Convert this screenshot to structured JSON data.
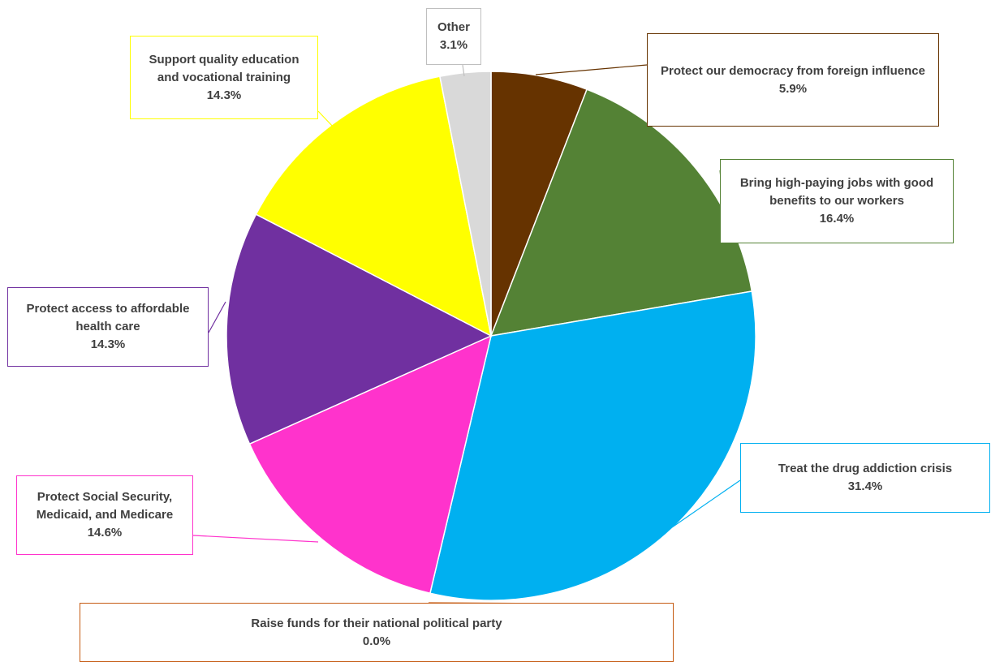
{
  "chart_data": {
    "type": "pie",
    "start_angle_deg": 0,
    "direction": "clockwise",
    "slices": [
      {
        "label": "Protect our democracy from foreign influence",
        "pct": "5.9%",
        "value": 5.9,
        "color": "#663300",
        "border": "#663300"
      },
      {
        "label": "Bring high-paying jobs with good benefits to our workers",
        "pct": "16.4%",
        "value": 16.4,
        "color": "#548235",
        "border": "#548235"
      },
      {
        "label": "Treat the drug addiction crisis",
        "pct": "31.4%",
        "value": 31.4,
        "color": "#00B0F0",
        "border": "#00B0F0"
      },
      {
        "label": "Raise funds for their national political party",
        "pct": "0.0%",
        "value": 0.0,
        "color": "#C55A11",
        "border": "#C55A11"
      },
      {
        "label": "Protect Social Security, Medicaid, and Medicare",
        "pct": "14.6%",
        "value": 14.6,
        "color": "#FF33CC",
        "border": "#FF33CC"
      },
      {
        "label": "Protect access to affordable health care",
        "pct": "14.3%",
        "value": 14.3,
        "color": "#7030A0",
        "border": "#7030A0"
      },
      {
        "label": "Support quality education and vocational training",
        "pct": "14.3%",
        "value": 14.3,
        "color": "#FFFF00",
        "border": "#FFFF00"
      },
      {
        "label": "Other",
        "pct": "3.1%",
        "value": 3.1,
        "color": "#D9D9D9",
        "border": "#BFBFBF"
      }
    ]
  }
}
